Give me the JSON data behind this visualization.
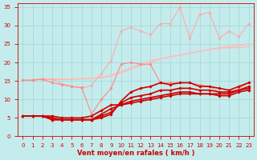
{
  "xlabel": "Vent moyen/en rafales ( km/h )",
  "xlim": [
    -0.5,
    23.5
  ],
  "ylim": [
    0,
    36
  ],
  "yticks": [
    0,
    5,
    10,
    15,
    20,
    25,
    30,
    35
  ],
  "xticks": [
    0,
    1,
    2,
    3,
    4,
    5,
    6,
    7,
    8,
    9,
    10,
    11,
    12,
    13,
    14,
    15,
    16,
    17,
    18,
    19,
    20,
    21,
    22,
    23
  ],
  "bg_color": "#c5ecec",
  "grid_color": "#a8d8d8",
  "lines": [
    {
      "x": [
        0,
        1,
        2,
        3,
        4,
        5,
        6,
        7,
        8,
        9,
        10,
        11,
        12,
        13,
        14,
        15,
        16,
        17,
        18,
        19,
        20,
        21,
        22,
        23
      ],
      "y": [
        15.2,
        15.3,
        15.5,
        15.5,
        15.5,
        15.5,
        15.6,
        15.7,
        16.0,
        16.5,
        17.5,
        18.5,
        19.5,
        20.5,
        21.0,
        21.5,
        22.0,
        22.5,
        23.0,
        23.5,
        24.0,
        24.3,
        24.6,
        25.0
      ],
      "color": "#ffbbbb",
      "lw": 1.0,
      "marker": null
    },
    {
      "x": [
        0,
        1,
        2,
        3,
        4,
        5,
        6,
        7,
        8,
        9,
        10,
        11,
        12,
        13,
        14,
        15,
        16,
        17,
        18,
        19,
        20,
        21,
        22,
        23
      ],
      "y": [
        15.2,
        15.3,
        15.4,
        15.4,
        15.4,
        15.4,
        15.5,
        15.6,
        15.9,
        16.3,
        17.2,
        18.2,
        19.2,
        20.0,
        21.0,
        21.5,
        22.0,
        22.5,
        23.0,
        23.5,
        23.8,
        24.0,
        24.0,
        24.3
      ],
      "color": "#ffbbbb",
      "lw": 1.0,
      "marker": null
    },
    {
      "x": [
        0,
        1,
        2,
        3,
        4,
        5,
        6,
        7,
        8,
        9,
        10,
        11,
        12,
        13,
        14,
        15,
        16,
        17,
        18,
        19,
        20,
        21,
        22,
        23
      ],
      "y": [
        15.2,
        15.2,
        15.5,
        15.5,
        14.2,
        13.5,
        13.0,
        13.8,
        17.0,
        20.5,
        28.5,
        29.5,
        28.5,
        27.5,
        30.5,
        30.5,
        35.0,
        26.5,
        33.0,
        33.5,
        26.5,
        28.5,
        27.0,
        30.5
      ],
      "color": "#ffaaaa",
      "lw": 0.8,
      "marker": "o",
      "markersize": 2.0
    },
    {
      "x": [
        0,
        1,
        2,
        3,
        4,
        5,
        6,
        7,
        8,
        9,
        10,
        11,
        12,
        13,
        14,
        15,
        16,
        17,
        18,
        19,
        20,
        21,
        22,
        23
      ],
      "y": [
        15.2,
        15.2,
        15.5,
        14.5,
        14.0,
        13.5,
        13.2,
        6.0,
        10.0,
        13.0,
        19.5,
        20.0,
        19.5,
        19.5,
        14.5,
        14.5,
        14.5,
        14.5,
        14.0,
        13.5,
        12.0,
        11.5,
        13.0,
        14.5
      ],
      "color": "#ff8888",
      "lw": 0.8,
      "marker": "o",
      "markersize": 2.0
    },
    {
      "x": [
        0,
        1,
        2,
        3,
        4,
        5,
        6,
        7,
        8,
        9,
        10,
        11,
        12,
        13,
        14,
        15,
        16,
        17,
        18,
        19,
        20,
        21,
        22,
        23
      ],
      "y": [
        5.5,
        5.5,
        5.5,
        4.5,
        4.5,
        4.5,
        4.5,
        4.5,
        5.0,
        6.0,
        9.5,
        12.0,
        13.0,
        13.5,
        14.5,
        14.0,
        14.5,
        14.5,
        13.5,
        13.5,
        13.0,
        12.5,
        13.5,
        14.5
      ],
      "color": "#cc0000",
      "lw": 1.2,
      "marker": "D",
      "markersize": 1.8
    },
    {
      "x": [
        0,
        1,
        2,
        3,
        4,
        5,
        6,
        7,
        8,
        9,
        10,
        11,
        12,
        13,
        14,
        15,
        16,
        17,
        18,
        19,
        20,
        21,
        22,
        23
      ],
      "y": [
        5.5,
        5.5,
        5.5,
        4.5,
        4.5,
        4.5,
        4.5,
        4.5,
        5.5,
        6.5,
        9.0,
        10.5,
        11.0,
        11.5,
        12.5,
        12.5,
        13.0,
        13.0,
        12.5,
        12.5,
        12.0,
        12.0,
        12.5,
        13.5
      ],
      "color": "#cc0000",
      "lw": 1.2,
      "marker": "D",
      "markersize": 1.8
    },
    {
      "x": [
        0,
        1,
        2,
        3,
        4,
        5,
        6,
        7,
        8,
        9,
        10,
        11,
        12,
        13,
        14,
        15,
        16,
        17,
        18,
        19,
        20,
        21,
        22,
        23
      ],
      "y": [
        5.5,
        5.5,
        5.5,
        5.0,
        4.5,
        4.5,
        4.5,
        4.5,
        6.0,
        7.5,
        8.5,
        9.5,
        10.0,
        10.5,
        11.0,
        11.5,
        12.0,
        12.0,
        11.5,
        11.5,
        11.5,
        11.5,
        12.5,
        13.0
      ],
      "color": "#cc0000",
      "lw": 1.2,
      "marker": "D",
      "markersize": 1.8
    },
    {
      "x": [
        0,
        1,
        2,
        3,
        4,
        5,
        6,
        7,
        8,
        9,
        10,
        11,
        12,
        13,
        14,
        15,
        16,
        17,
        18,
        19,
        20,
        21,
        22,
        23
      ],
      "y": [
        5.5,
        5.5,
        5.5,
        5.5,
        5.0,
        5.0,
        5.0,
        5.5,
        7.0,
        8.5,
        8.5,
        9.0,
        9.5,
        10.0,
        10.5,
        11.0,
        11.5,
        11.5,
        11.5,
        11.5,
        11.0,
        11.0,
        12.0,
        12.5
      ],
      "color": "#cc0000",
      "lw": 1.2,
      "marker": "D",
      "markersize": 1.8
    }
  ],
  "tick_color": "#cc0000",
  "label_fontsize": 5.0,
  "xlabel_fontsize": 6.0
}
